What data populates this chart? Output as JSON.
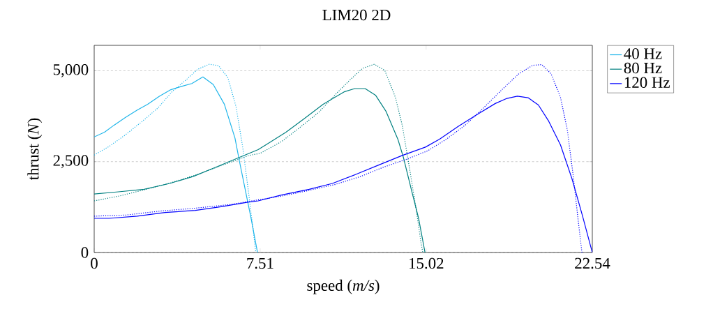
{
  "chart_data": {
    "type": "line",
    "title": "LIM20 2D",
    "xlabel": "speed (*m/s*)",
    "ylabel": "thrust (*N*)",
    "xlim": [
      0,
      22.54
    ],
    "ylim": [
      0,
      5700
    ],
    "xticks": [
      0,
      7.51,
      15.02,
      22.54
    ],
    "yticks": [
      0,
      {
        "value": 2500,
        "label": "2,500"
      },
      {
        "value": 5000,
        "label": "5,000"
      }
    ],
    "grid": "y",
    "legend": "top right",
    "series": [
      {
        "name": "40 Hz",
        "color": "#1fb5ea",
        "line_style": "solid",
        "x": [
          0,
          0.47,
          0.89,
          1.42,
          1.95,
          2.42,
          2.95,
          3.47,
          3.95,
          4.42,
          4.92,
          5.39,
          5.89,
          6.37,
          6.58,
          7.1,
          7.39
        ],
        "values": [
          3180,
          3310,
          3500,
          3720,
          3920,
          4080,
          4300,
          4480,
          4570,
          4650,
          4830,
          4620,
          4080,
          3150,
          2490,
          940,
          0
        ]
      },
      {
        "name": "80 Hz",
        "color": "#008080",
        "line_style": "solid",
        "x": [
          0,
          1.1,
          2.26,
          3.42,
          4.47,
          5.52,
          6.58,
          7.42,
          7.84,
          8.68,
          9.52,
          10.36,
          10.89,
          11.31,
          11.79,
          12.26,
          12.73,
          13.2,
          13.74,
          14.0,
          14.36,
          14.68,
          14.97
        ],
        "values": [
          1610,
          1670,
          1740,
          1900,
          2090,
          2350,
          2620,
          2830,
          2990,
          3310,
          3690,
          4080,
          4270,
          4420,
          4510,
          4510,
          4330,
          3890,
          3120,
          2600,
          1710,
          940,
          0
        ]
      },
      {
        "name": "120 Hz",
        "color": "#0000ff",
        "line_style": "solid",
        "x": [
          0,
          0.68,
          1.95,
          3.21,
          4.58,
          5.74,
          7.0,
          7.42,
          8.47,
          9.73,
          10.78,
          11.84,
          12.89,
          13.94,
          14.99,
          15.63,
          16.47,
          17.31,
          18.15,
          18.68,
          19.15,
          19.63,
          20.1,
          20.57,
          21.1,
          21.62,
          22.1,
          22.54
        ],
        "values": [
          940,
          940,
          1000,
          1100,
          1160,
          1260,
          1390,
          1420,
          1580,
          1740,
          1900,
          2150,
          2410,
          2670,
          2900,
          3120,
          3470,
          3790,
          4100,
          4240,
          4300,
          4260,
          4060,
          3610,
          2960,
          2030,
          1000,
          0
        ]
      },
      {
        "color": "#1fb5ea",
        "line_style": "dotted",
        "x": [
          0,
          0.68,
          1.42,
          2.16,
          2.89,
          3.53,
          4.16,
          4.68,
          5.21,
          5.63,
          6.05,
          6.42,
          6.73,
          7.0,
          7.21,
          7.31
        ],
        "values": [
          2680,
          2920,
          3240,
          3600,
          3980,
          4430,
          4750,
          5040,
          5180,
          5140,
          4810,
          4010,
          2860,
          1580,
          550,
          0
        ]
      },
      {
        "color": "#008080",
        "line_style": "dotted",
        "x": [
          0,
          1.1,
          2.37,
          3.53,
          4.68,
          5.84,
          7.0,
          7.52,
          8.47,
          9.31,
          10.15,
          11.0,
          11.63,
          12.15,
          12.68,
          13.15,
          13.63,
          13.94,
          14.26,
          14.57,
          14.78,
          14.87
        ],
        "values": [
          1420,
          1550,
          1740,
          1930,
          2150,
          2410,
          2670,
          2730,
          3050,
          3440,
          3850,
          4400,
          4780,
          5070,
          5180,
          5010,
          4270,
          3500,
          2350,
          1190,
          300,
          0
        ]
      },
      {
        "color": "#0000ff",
        "line_style": "dotted",
        "x": [
          0,
          1.42,
          2.99,
          4.58,
          6.16,
          7.42,
          8.47,
          9.73,
          10.89,
          12.05,
          13.1,
          14.15,
          15.1,
          15.94,
          16.78,
          17.62,
          18.47,
          19.2,
          19.84,
          20.26,
          20.68,
          21.1,
          21.41,
          21.68,
          21.89,
          22.07
        ],
        "values": [
          1000,
          1030,
          1140,
          1220,
          1320,
          1450,
          1550,
          1710,
          1870,
          2090,
          2350,
          2570,
          2800,
          3120,
          3500,
          3980,
          4490,
          4910,
          5150,
          5170,
          4910,
          4270,
          3370,
          2090,
          940,
          0
        ]
      }
    ]
  }
}
